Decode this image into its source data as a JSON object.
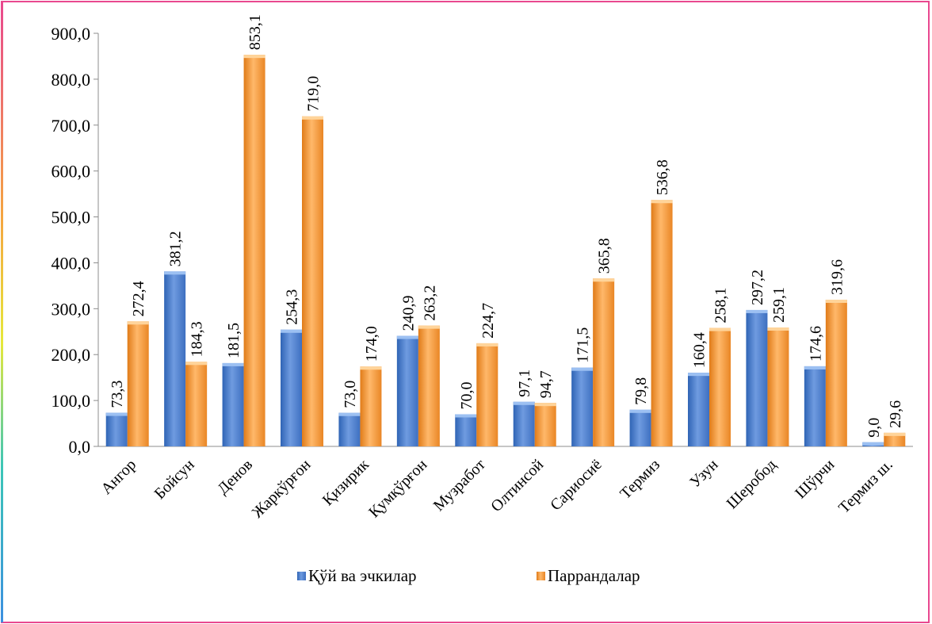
{
  "chart_data": {
    "type": "bar",
    "categories": [
      "Ангор",
      "Бойсун",
      "Денов",
      "Жаркўрғон",
      "Қизирик",
      "Қумқўрғон",
      "Музработ",
      "Олтинсой",
      "Сариосиё",
      "Термиз",
      "Узун",
      "Шеробод",
      "Шўрчи",
      "Термиз ш."
    ],
    "series": [
      {
        "name": "Қўй ва эчкилар",
        "color": "#4a7fd0",
        "values": [
          73.3,
          381.2,
          181.5,
          254.3,
          73.0,
          240.9,
          70.0,
          97.1,
          171.5,
          79.8,
          160.4,
          297.2,
          174.6,
          9.0
        ],
        "labels": [
          "73,3",
          "381,2",
          "181,5",
          "254,3",
          "73,0",
          "240,9",
          "70,0",
          "97,1",
          "171,5",
          "79,8",
          "160,4",
          "297,2",
          "174,6",
          "9,0"
        ]
      },
      {
        "name": "Паррандалар",
        "color": "#f39c3c",
        "values": [
          272.4,
          184.3,
          853.1,
          719.0,
          174.0,
          263.2,
          224.7,
          94.7,
          365.8,
          536.8,
          258.1,
          259.1,
          319.6,
          29.6
        ],
        "labels": [
          "272,4",
          "184,3",
          "853,1",
          "719,0",
          "174,0",
          "263,2",
          "224,7",
          "94,7",
          "365,8",
          "536,8",
          "258,1",
          "259,1",
          "319,6",
          "29,6"
        ]
      }
    ],
    "ylim": [
      0,
      900
    ],
    "yticks": [
      0,
      100,
      200,
      300,
      400,
      500,
      600,
      700,
      800,
      900
    ],
    "ytick_labels": [
      "0,0",
      "100,0",
      "200,0",
      "300,0",
      "400,0",
      "500,0",
      "600,0",
      "700,0",
      "800,0",
      "900,0"
    ],
    "legend": "bottom",
    "grid": false
  }
}
